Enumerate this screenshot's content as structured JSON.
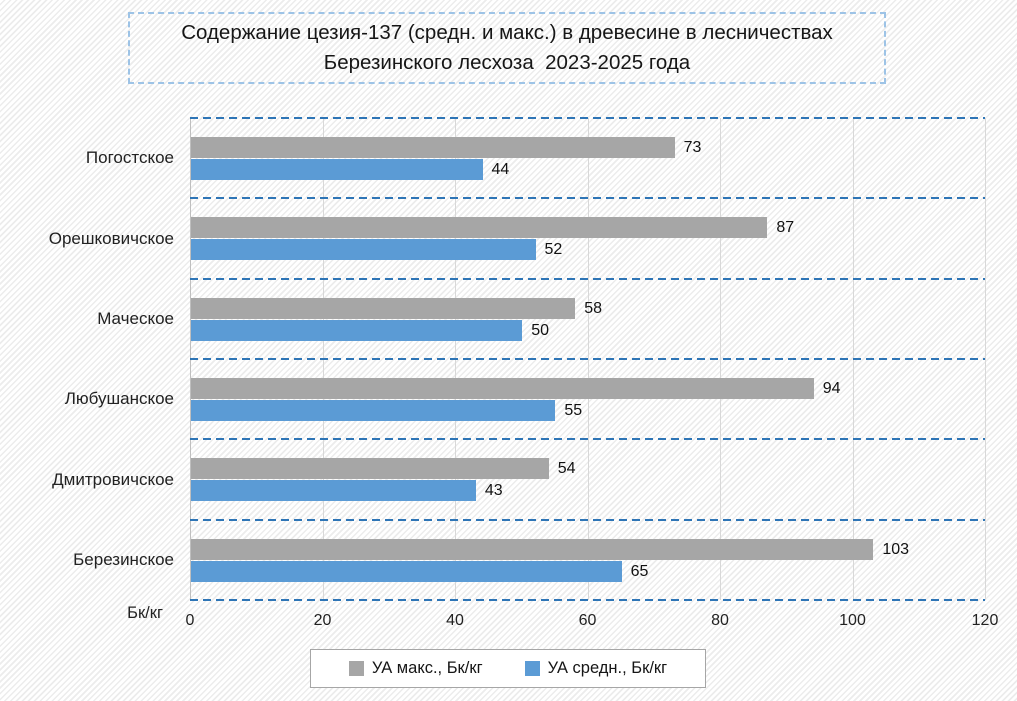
{
  "title": {
    "lines": [
      "Содержание цезия-137 (средн. и макс.) в древесине в лесничествах",
      "Березинского лесхоза  2023-2025 года"
    ]
  },
  "axis": {
    "unit_label": "Бк/кг",
    "ticks": [
      "0",
      "20",
      "40",
      "60",
      "80",
      "100",
      "120"
    ]
  },
  "legend": {
    "items": [
      {
        "label": "УА макс., Бк/кг",
        "color": "#a6a6a6"
      },
      {
        "label": "УА средн., Бк/кг",
        "color": "#5b9bd5"
      }
    ]
  },
  "colors": {
    "bar_max": "#a6a6a6",
    "bar_avg": "#5b9bd5",
    "dashed_gridline": "#2e75b6",
    "vertical_gridline": "#d8d8d8",
    "axis_line": "#bfbfbf",
    "title_border": "#9dc3e6",
    "legend_border": "#a6a6a6"
  },
  "chart_data": {
    "type": "bar",
    "orientation": "horizontal",
    "title": "Содержание цезия-137 (средн. и макс.) в древесине в лесничествах Березинского лесхоза 2023-2025 года",
    "xlabel": "Бк/кг",
    "xlim": [
      0,
      120
    ],
    "x_ticks": [
      0,
      20,
      40,
      60,
      80,
      100,
      120
    ],
    "grid": "vertical solid light-gray; horizontal category separators dashed blue",
    "legend_position": "bottom",
    "data_labels": true,
    "categories_top_to_bottom": [
      "Погостское",
      "Орешковичское",
      "Маческое",
      "Любушанское",
      "Дмитровичское",
      "Березинское"
    ],
    "series": [
      {
        "name": "УА макс., Бк/кг",
        "color": "#a6a6a6",
        "values": [
          73,
          87,
          58,
          94,
          54,
          103
        ]
      },
      {
        "name": "УА средн., Бк/кг",
        "color": "#5b9bd5",
        "values": [
          44,
          52,
          50,
          55,
          43,
          65
        ]
      }
    ]
  }
}
